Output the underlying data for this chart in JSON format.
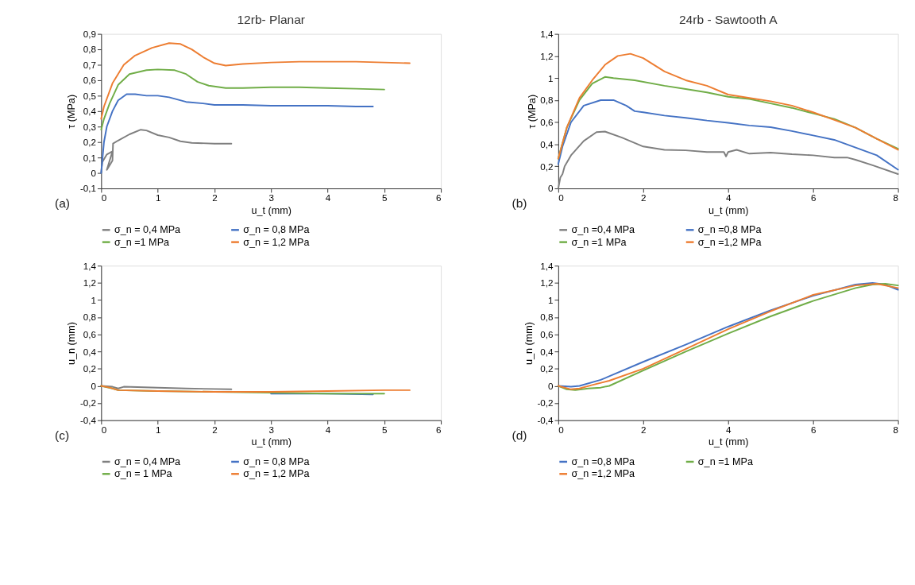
{
  "chart_data": [
    {
      "type": "line",
      "title": "12rb- Planar",
      "xlabel": "u_t (mm)",
      "ylabel": "τ (MPa)",
      "annotations": [
        "(a)"
      ],
      "legend": "bottom",
      "grid": false,
      "marker": "none",
      "line_style": "solid",
      "xlim": [
        0,
        6
      ],
      "xticks": [
        0,
        1,
        2,
        3,
        4,
        5,
        6
      ],
      "ylim": [
        -0.1,
        0.9
      ],
      "yticks": [
        {
          "value": -0.1,
          "label": "-0,1"
        },
        0,
        {
          "value": 0.1,
          "label": "0,1"
        },
        {
          "value": 0.2,
          "label": "0,2"
        },
        {
          "value": 0.3,
          "label": "0,3"
        },
        {
          "value": 0.4,
          "label": "0,4"
        },
        {
          "value": 0.5,
          "label": "0,5"
        },
        {
          "value": 0.6,
          "label": "0,6"
        },
        {
          "value": 0.7,
          "label": "0,7"
        },
        {
          "value": 0.8,
          "label": "0,8"
        },
        {
          "value": 0.9,
          "label": "0,9"
        }
      ],
      "series": [
        {
          "name": "σ_n = 0,4 MPa",
          "color": "#7f7f7f",
          "x": [
            0,
            0.02,
            0.1,
            0.2,
            0.1,
            0.15,
            0.2,
            0.21,
            0.3,
            0.5,
            0.7,
            0.8,
            1.0,
            1.2,
            1.4,
            1.6,
            2.0,
            2.3
          ],
          "values": [
            0,
            0.07,
            0.12,
            0.14,
            0.02,
            0.05,
            0.08,
            0.19,
            0.21,
            0.25,
            0.28,
            0.275,
            0.245,
            0.23,
            0.205,
            0.195,
            0.19,
            0.19
          ]
        },
        {
          "name": "σ_n = 0,8 MPa",
          "color": "#4472c4",
          "x": [
            0,
            0.05,
            0.1,
            0.2,
            0.3,
            0.45,
            0.6,
            0.8,
            1.0,
            1.2,
            1.5,
            1.8,
            2.0,
            2.5,
            3,
            3.5,
            4,
            4.5,
            4.8
          ],
          "values": [
            0,
            0.2,
            0.3,
            0.4,
            0.47,
            0.51,
            0.51,
            0.5,
            0.5,
            0.49,
            0.46,
            0.45,
            0.44,
            0.44,
            0.435,
            0.435,
            0.435,
            0.43,
            0.43
          ]
        },
        {
          "name": "σ_n =1 MPa",
          "color": "#70ad47",
          "x": [
            0,
            0.05,
            0.15,
            0.3,
            0.5,
            0.8,
            1.0,
            1.3,
            1.5,
            1.7,
            1.9,
            2.2,
            2.5,
            3,
            3.5,
            4,
            4.5,
            5
          ],
          "values": [
            0.28,
            0.35,
            0.45,
            0.57,
            0.64,
            0.665,
            0.67,
            0.665,
            0.64,
            0.59,
            0.565,
            0.55,
            0.55,
            0.555,
            0.555,
            0.55,
            0.545,
            0.54
          ]
        },
        {
          "name": "σ_n = 1,2 MPa",
          "color": "#ed7d31",
          "x": [
            0,
            0.05,
            0.2,
            0.4,
            0.6,
            0.9,
            1.2,
            1.4,
            1.6,
            1.8,
            2.0,
            2.2,
            2.5,
            3,
            3.5,
            4,
            4.5,
            5,
            5.45
          ],
          "values": [
            0.35,
            0.43,
            0.58,
            0.7,
            0.76,
            0.81,
            0.84,
            0.835,
            0.8,
            0.75,
            0.71,
            0.695,
            0.705,
            0.715,
            0.72,
            0.72,
            0.72,
            0.715,
            0.71
          ]
        }
      ]
    },
    {
      "type": "line",
      "title": "24rb - Sawtooth A",
      "xlabel": "u_t (mm)",
      "ylabel": "τ (MPa)",
      "annotations": [
        "(b)"
      ],
      "legend": "bottom",
      "grid": false,
      "marker": "none",
      "line_style": "solid",
      "xlim": [
        0,
        8
      ],
      "xticks": [
        0,
        2,
        4,
        6,
        8
      ],
      "ylim": [
        0,
        1.4
      ],
      "yticks": [
        0,
        {
          "value": 0.2,
          "label": "0,2"
        },
        {
          "value": 0.4,
          "label": "0,4"
        },
        {
          "value": 0.6,
          "label": "0,6"
        },
        {
          "value": 0.8,
          "label": "0,8"
        },
        1,
        {
          "value": 1.2,
          "label": "1,2"
        },
        {
          "value": 1.4,
          "label": "1,4"
        }
      ],
      "series": [
        {
          "name": "σ_n =0,4 MPa",
          "color": "#7f7f7f",
          "x": [
            0,
            0.05,
            0.1,
            0.15,
            0.3,
            0.6,
            0.9,
            1.1,
            1.5,
            2,
            2.5,
            3,
            3.5,
            3.9,
            3.95,
            4.0,
            4.2,
            4.5,
            5,
            5.5,
            6,
            6.5,
            6.8,
            7,
            7.4,
            8
          ],
          "values": [
            0,
            0.1,
            0.13,
            0.2,
            0.3,
            0.43,
            0.51,
            0.515,
            0.46,
            0.38,
            0.35,
            0.345,
            0.33,
            0.33,
            0.29,
            0.33,
            0.35,
            0.315,
            0.325,
            0.31,
            0.3,
            0.28,
            0.28,
            0.26,
            0.21,
            0.13
          ]
        },
        {
          "name": "σ_n =0,8 MPa",
          "color": "#4472c4",
          "x": [
            0,
            0.1,
            0.3,
            0.6,
            1,
            1.3,
            1.6,
            1.8,
            2,
            2.5,
            3,
            3.5,
            4,
            4.5,
            5,
            5.5,
            6,
            6.5,
            7,
            7.5,
            8
          ],
          "values": [
            0.22,
            0.38,
            0.6,
            0.75,
            0.8,
            0.8,
            0.75,
            0.7,
            0.69,
            0.66,
            0.64,
            0.615,
            0.595,
            0.57,
            0.555,
            0.52,
            0.48,
            0.44,
            0.37,
            0.3,
            0.17
          ]
        },
        {
          "name": "σ_n =1 MPa",
          "color": "#70ad47",
          "x": [
            0,
            0.2,
            0.5,
            0.8,
            1.1,
            1.3,
            1.8,
            2.5,
            3,
            3.5,
            4,
            4.5,
            5,
            5.5,
            6,
            6.5,
            7,
            7.5,
            8
          ],
          "values": [
            0.27,
            0.55,
            0.8,
            0.95,
            1.01,
            1.0,
            0.98,
            0.93,
            0.9,
            0.87,
            0.83,
            0.81,
            0.77,
            0.73,
            0.68,
            0.63,
            0.55,
            0.45,
            0.36
          ]
        },
        {
          "name": "σ_n =1,2 MPa",
          "color": "#ed7d31",
          "x": [
            0,
            0.2,
            0.5,
            0.8,
            1.1,
            1.4,
            1.7,
            2,
            2.5,
            3,
            3.5,
            4,
            4.5,
            5,
            5.5,
            6,
            6.5,
            7,
            7.5,
            8
          ],
          "values": [
            0.27,
            0.55,
            0.82,
            0.98,
            1.12,
            1.2,
            1.22,
            1.18,
            1.06,
            0.98,
            0.93,
            0.85,
            0.82,
            0.79,
            0.75,
            0.69,
            0.62,
            0.55,
            0.45,
            0.35
          ]
        }
      ]
    },
    {
      "type": "line",
      "xlabel": "u_t (mm)",
      "ylabel": "u_n (mm)",
      "annotations": [
        "(c)"
      ],
      "legend": "bottom",
      "grid": false,
      "marker": "none",
      "line_style": "solid",
      "xlim": [
        0,
        6
      ],
      "xticks": [
        0,
        1,
        2,
        3,
        4,
        5,
        6
      ],
      "ylim": [
        -0.4,
        1.4
      ],
      "yticks": [
        {
          "value": -0.4,
          "label": "-0,4"
        },
        {
          "value": -0.2,
          "label": "-0,2"
        },
        0,
        {
          "value": 0.2,
          "label": "0,2"
        },
        {
          "value": 0.4,
          "label": "0,4"
        },
        {
          "value": 0.6,
          "label": "0,6"
        },
        {
          "value": 0.8,
          "label": "0,8"
        },
        1,
        {
          "value": 1.2,
          "label": "1,2"
        },
        {
          "value": 1.4,
          "label": "1,4"
        }
      ],
      "series": [
        {
          "name": "σ_n = 0,4 MPa",
          "color": "#7f7f7f",
          "x": [
            0,
            0.2,
            0.3,
            0.4,
            1,
            1.5,
            2.3
          ],
          "values": [
            0,
            -0.01,
            -0.03,
            -0.01,
            -0.02,
            -0.03,
            -0.04
          ]
        },
        {
          "name": "σ_n = 0,8 MPa",
          "color": "#4472c4",
          "x": [
            3,
            4,
            4.8
          ],
          "values": [
            -0.09,
            -0.09,
            -0.1
          ]
        },
        {
          "name": "σ_n = 1 MPa",
          "color": "#70ad47",
          "x": [
            0,
            0.2,
            0.3,
            1,
            2,
            3,
            4,
            5
          ],
          "values": [
            0,
            -0.03,
            -0.05,
            -0.06,
            -0.07,
            -0.08,
            -0.09,
            -0.09
          ]
        },
        {
          "name": "σ_n = 1,2 MPa",
          "color": "#ed7d31",
          "x": [
            0,
            0.15,
            0.3,
            1,
            2,
            3,
            4,
            5,
            5.45
          ],
          "values": [
            0,
            -0.02,
            -0.05,
            -0.06,
            -0.07,
            -0.07,
            -0.06,
            -0.05,
            -0.05
          ]
        }
      ]
    },
    {
      "type": "line",
      "xlabel": "u_t (mm)",
      "ylabel": "u_n (mm)",
      "annotations": [
        "(d)"
      ],
      "legend": "bottom",
      "grid": false,
      "marker": "none",
      "line_style": "solid",
      "xlim": [
        0,
        8
      ],
      "xticks": [
        0,
        2,
        4,
        6,
        8
      ],
      "ylim": [
        -0.4,
        1.4
      ],
      "yticks": [
        {
          "value": -0.4,
          "label": "-0,4"
        },
        {
          "value": -0.2,
          "label": "-0,2"
        },
        0,
        {
          "value": 0.2,
          "label": "0,2"
        },
        {
          "value": 0.4,
          "label": "0,4"
        },
        {
          "value": 0.6,
          "label": "0,6"
        },
        {
          "value": 0.8,
          "label": "0,8"
        },
        1,
        {
          "value": 1.2,
          "label": "1,2"
        },
        {
          "value": 1.4,
          "label": "1,4"
        }
      ],
      "series": [
        {
          "name": "σ_n =0,8 MPa",
          "color": "#4472c4",
          "x": [
            0,
            0.3,
            0.5,
            1,
            2,
            3,
            4,
            5,
            6,
            7,
            7.4,
            7.7,
            8
          ],
          "values": [
            0,
            -0.01,
            0,
            0.07,
            0.28,
            0.48,
            0.69,
            0.88,
            1.05,
            1.18,
            1.2,
            1.18,
            1.12
          ]
        },
        {
          "name": "σ_n =1 MPa",
          "color": "#70ad47",
          "x": [
            0,
            0.2,
            0.4,
            0.7,
            1,
            1.2,
            2,
            3,
            4,
            5,
            6,
            7,
            7.4,
            7.7,
            8
          ],
          "values": [
            0,
            -0.04,
            -0.05,
            -0.03,
            -0.02,
            0,
            0.18,
            0.4,
            0.61,
            0.81,
            0.99,
            1.14,
            1.18,
            1.19,
            1.17
          ]
        },
        {
          "name": "σ_n =1,2 MPa",
          "color": "#ed7d31",
          "x": [
            0,
            0.3,
            0.5,
            0.8,
            1.2,
            2,
            3,
            4,
            5,
            6,
            7,
            7.5,
            8
          ],
          "values": [
            0,
            -0.04,
            -0.03,
            0.01,
            0.06,
            0.2,
            0.43,
            0.66,
            0.87,
            1.06,
            1.17,
            1.19,
            1.14
          ]
        }
      ]
    }
  ]
}
